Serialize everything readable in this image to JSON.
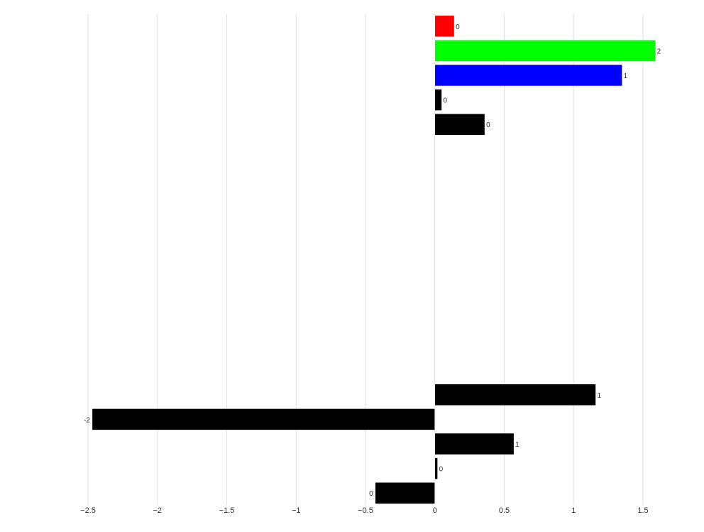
{
  "chart_data": {
    "type": "bar",
    "orientation": "horizontal",
    "title": "",
    "xlabel": "",
    "ylabel": "",
    "xlim": [
      -2.5,
      1.6
    ],
    "grid": true,
    "legend": "none",
    "x_ticks": [
      -2.5,
      -2,
      -1.5,
      -1,
      -0.5,
      0,
      0.5,
      1,
      1.5
    ],
    "x_tick_labels": [
      "−2.5",
      "−2",
      "−1.5",
      "−1",
      "−0.5",
      "0",
      "0.5",
      "1",
      "1.5"
    ],
    "bars": [
      {
        "value": 0.14,
        "label": "0",
        "color": "#ff0000"
      },
      {
        "value": 1.59,
        "label": "2",
        "color": "#00ff00"
      },
      {
        "value": 1.35,
        "label": "1",
        "color": "#0000ff"
      },
      {
        "value": 0.05,
        "label": "0",
        "color": "#000000"
      },
      {
        "value": 0.36,
        "label": "0",
        "color": "#000000"
      },
      {
        "value": null,
        "label": "",
        "color": "#000000"
      },
      {
        "value": null,
        "label": "",
        "color": "#000000"
      },
      {
        "value": null,
        "label": "",
        "color": "#000000"
      },
      {
        "value": null,
        "label": "",
        "color": "#000000"
      },
      {
        "value": null,
        "label": "",
        "color": "#000000"
      },
      {
        "value": null,
        "label": "",
        "color": "#000000"
      },
      {
        "value": null,
        "label": "",
        "color": "#000000"
      },
      {
        "value": null,
        "label": "",
        "color": "#000000"
      },
      {
        "value": null,
        "label": "",
        "color": "#000000"
      },
      {
        "value": null,
        "label": "",
        "color": "#000000"
      },
      {
        "value": 1.16,
        "label": "1",
        "color": "#000000"
      },
      {
        "value": -2.47,
        "label": "-2",
        "color": "#000000"
      },
      {
        "value": 0.57,
        "label": "1",
        "color": "#000000"
      },
      {
        "value": 0.02,
        "label": "0",
        "color": "#000000"
      },
      {
        "value": -0.43,
        "label": "0",
        "color": "#000000"
      }
    ]
  }
}
